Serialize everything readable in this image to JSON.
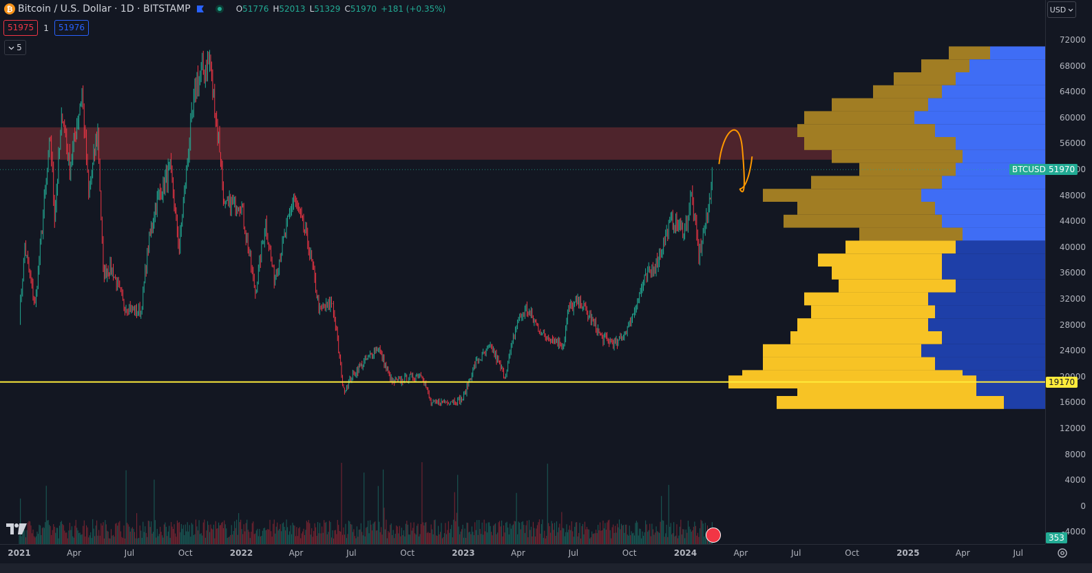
{
  "header": {
    "logo_letter": "₿",
    "title": "Bitcoin / U.S. Dollar · 1D · BITSTAMP",
    "open_key": "O",
    "open": "51776",
    "high_key": "H",
    "high": "52013",
    "low_key": "L",
    "low": "51329",
    "close_key": "C",
    "close": "51970",
    "change": "+181 (+0.35%)"
  },
  "trade": {
    "sell": "51975",
    "qty": "1",
    "buy": "51976"
  },
  "indicators_toggle": {
    "icon": "chevron-down-icon",
    "count": "5"
  },
  "currency_button": "USD",
  "price_axis": {
    "min": -4000,
    "max": 74000,
    "labels": [
      "72000",
      "68000",
      "64000",
      "60000",
      "56000",
      "52000",
      "48000",
      "44000",
      "40000",
      "36000",
      "32000",
      "28000",
      "24000",
      "20000",
      "16000",
      "12000",
      "8000",
      "4000",
      "0",
      "-4000"
    ]
  },
  "tags": {
    "symbol": "BTCUSD",
    "last_price": "51970",
    "support_price": "19170",
    "volume": "353"
  },
  "time_axis": {
    "labels": [
      "2021",
      "Apr",
      "Jul",
      "Oct",
      "2022",
      "Apr",
      "Jul",
      "Oct",
      "2023",
      "Apr",
      "Jul",
      "Oct",
      "2024",
      "Apr",
      "Jul",
      "Oct",
      "2025",
      "Apr",
      "Jul"
    ]
  },
  "zones": {
    "resistance_low": 53500,
    "resistance_high": 58500,
    "support_level": 19170
  },
  "colors": {
    "background": "#131722",
    "up": "#22ab94",
    "down": "#f23645",
    "zone": "#4e242c",
    "support_line": "#ffeb3b",
    "vp_up": "#f7c325",
    "vp_down": "#1e3fa8",
    "vp_va_up": "#a17d23",
    "vp_va_down": "#3f6df5",
    "annotation": "#ff9800"
  },
  "price_path": [
    [
      "2021-01-01",
      29000
    ],
    [
      "2021-01-10",
      40000
    ],
    [
      "2021-01-27",
      31000
    ],
    [
      "2021-02-21",
      57000
    ],
    [
      "2021-02-28",
      45000
    ],
    [
      "2021-03-13",
      61000
    ],
    [
      "2021-03-25",
      52000
    ],
    [
      "2021-04-14",
      64000
    ],
    [
      "2021-04-25",
      48000
    ],
    [
      "2021-05-10",
      58000
    ],
    [
      "2021-05-19",
      36000
    ],
    [
      "2021-06-01",
      37000
    ],
    [
      "2021-06-22",
      31000
    ],
    [
      "2021-07-20",
      30000
    ],
    [
      "2021-08-01",
      40000
    ],
    [
      "2021-08-14",
      47000
    ],
    [
      "2021-09-06",
      52000
    ],
    [
      "2021-09-21",
      40000
    ],
    [
      "2021-10-06",
      55000
    ],
    [
      "2021-10-20",
      66000
    ],
    [
      "2021-11-10",
      68500
    ],
    [
      "2021-11-28",
      54000
    ],
    [
      "2021-12-04",
      46000
    ],
    [
      "2021-12-31",
      47000
    ],
    [
      "2022-01-24",
      33000
    ],
    [
      "2022-02-10",
      44000
    ],
    [
      "2022-02-24",
      35000
    ],
    [
      "2022-03-28",
      47500
    ],
    [
      "2022-04-20",
      41000
    ],
    [
      "2022-05-10",
      30000
    ],
    [
      "2022-05-31",
      31500
    ],
    [
      "2022-06-18",
      17800
    ],
    [
      "2022-07-10",
      21000
    ],
    [
      "2022-08-14",
      24500
    ],
    [
      "2022-09-06",
      19000
    ],
    [
      "2022-09-25",
      19500
    ],
    [
      "2022-10-25",
      20500
    ],
    [
      "2022-11-09",
      15800
    ],
    [
      "2022-12-31",
      16500
    ],
    [
      "2023-01-20",
      22000
    ],
    [
      "2023-02-16",
      24500
    ],
    [
      "2023-03-10",
      20000
    ],
    [
      "2023-03-31",
      28500
    ],
    [
      "2023-04-14",
      30500
    ],
    [
      "2023-05-11",
      26500
    ],
    [
      "2023-06-15",
      25000
    ],
    [
      "2023-06-23",
      30500
    ],
    [
      "2023-07-13",
      31500
    ],
    [
      "2023-08-17",
      26000
    ],
    [
      "2023-09-11",
      25000
    ],
    [
      "2023-10-01",
      28000
    ],
    [
      "2023-10-24",
      34500
    ],
    [
      "2023-11-14",
      37500
    ],
    [
      "2023-12-08",
      44000
    ],
    [
      "2023-12-31",
      42500
    ],
    [
      "2024-01-11",
      48000
    ],
    [
      "2024-01-23",
      38800
    ],
    [
      "2024-02-08",
      45500
    ],
    [
      "2024-02-14",
      51970
    ]
  ],
  "volume_profile_rows": [
    [
      70000,
      60,
      80
    ],
    [
      68000,
      70,
      110
    ],
    [
      66000,
      90,
      130
    ],
    [
      64000,
      100,
      150
    ],
    [
      62000,
      140,
      170
    ],
    [
      60000,
      160,
      190
    ],
    [
      58000,
      200,
      160
    ],
    [
      56000,
      220,
      130
    ],
    [
      54000,
      190,
      120
    ],
    [
      52000,
      140,
      130
    ],
    [
      50000,
      190,
      150
    ],
    [
      48000,
      230,
      180
    ],
    [
      46000,
      200,
      160
    ],
    [
      44000,
      230,
      150
    ],
    [
      42000,
      150,
      120
    ],
    [
      40000,
      160,
      130
    ],
    [
      38000,
      180,
      150
    ],
    [
      36000,
      160,
      150
    ],
    [
      34000,
      170,
      130
    ],
    [
      32000,
      180,
      170
    ],
    [
      30000,
      180,
      160
    ],
    [
      28000,
      190,
      170
    ],
    [
      26000,
      220,
      150
    ],
    [
      24000,
      230,
      180
    ],
    [
      22000,
      250,
      160
    ],
    [
      20000,
      320,
      120
    ],
    [
      19170,
      360,
      100
    ],
    [
      18000,
      260,
      100
    ],
    [
      16000,
      330,
      60
    ]
  ]
}
